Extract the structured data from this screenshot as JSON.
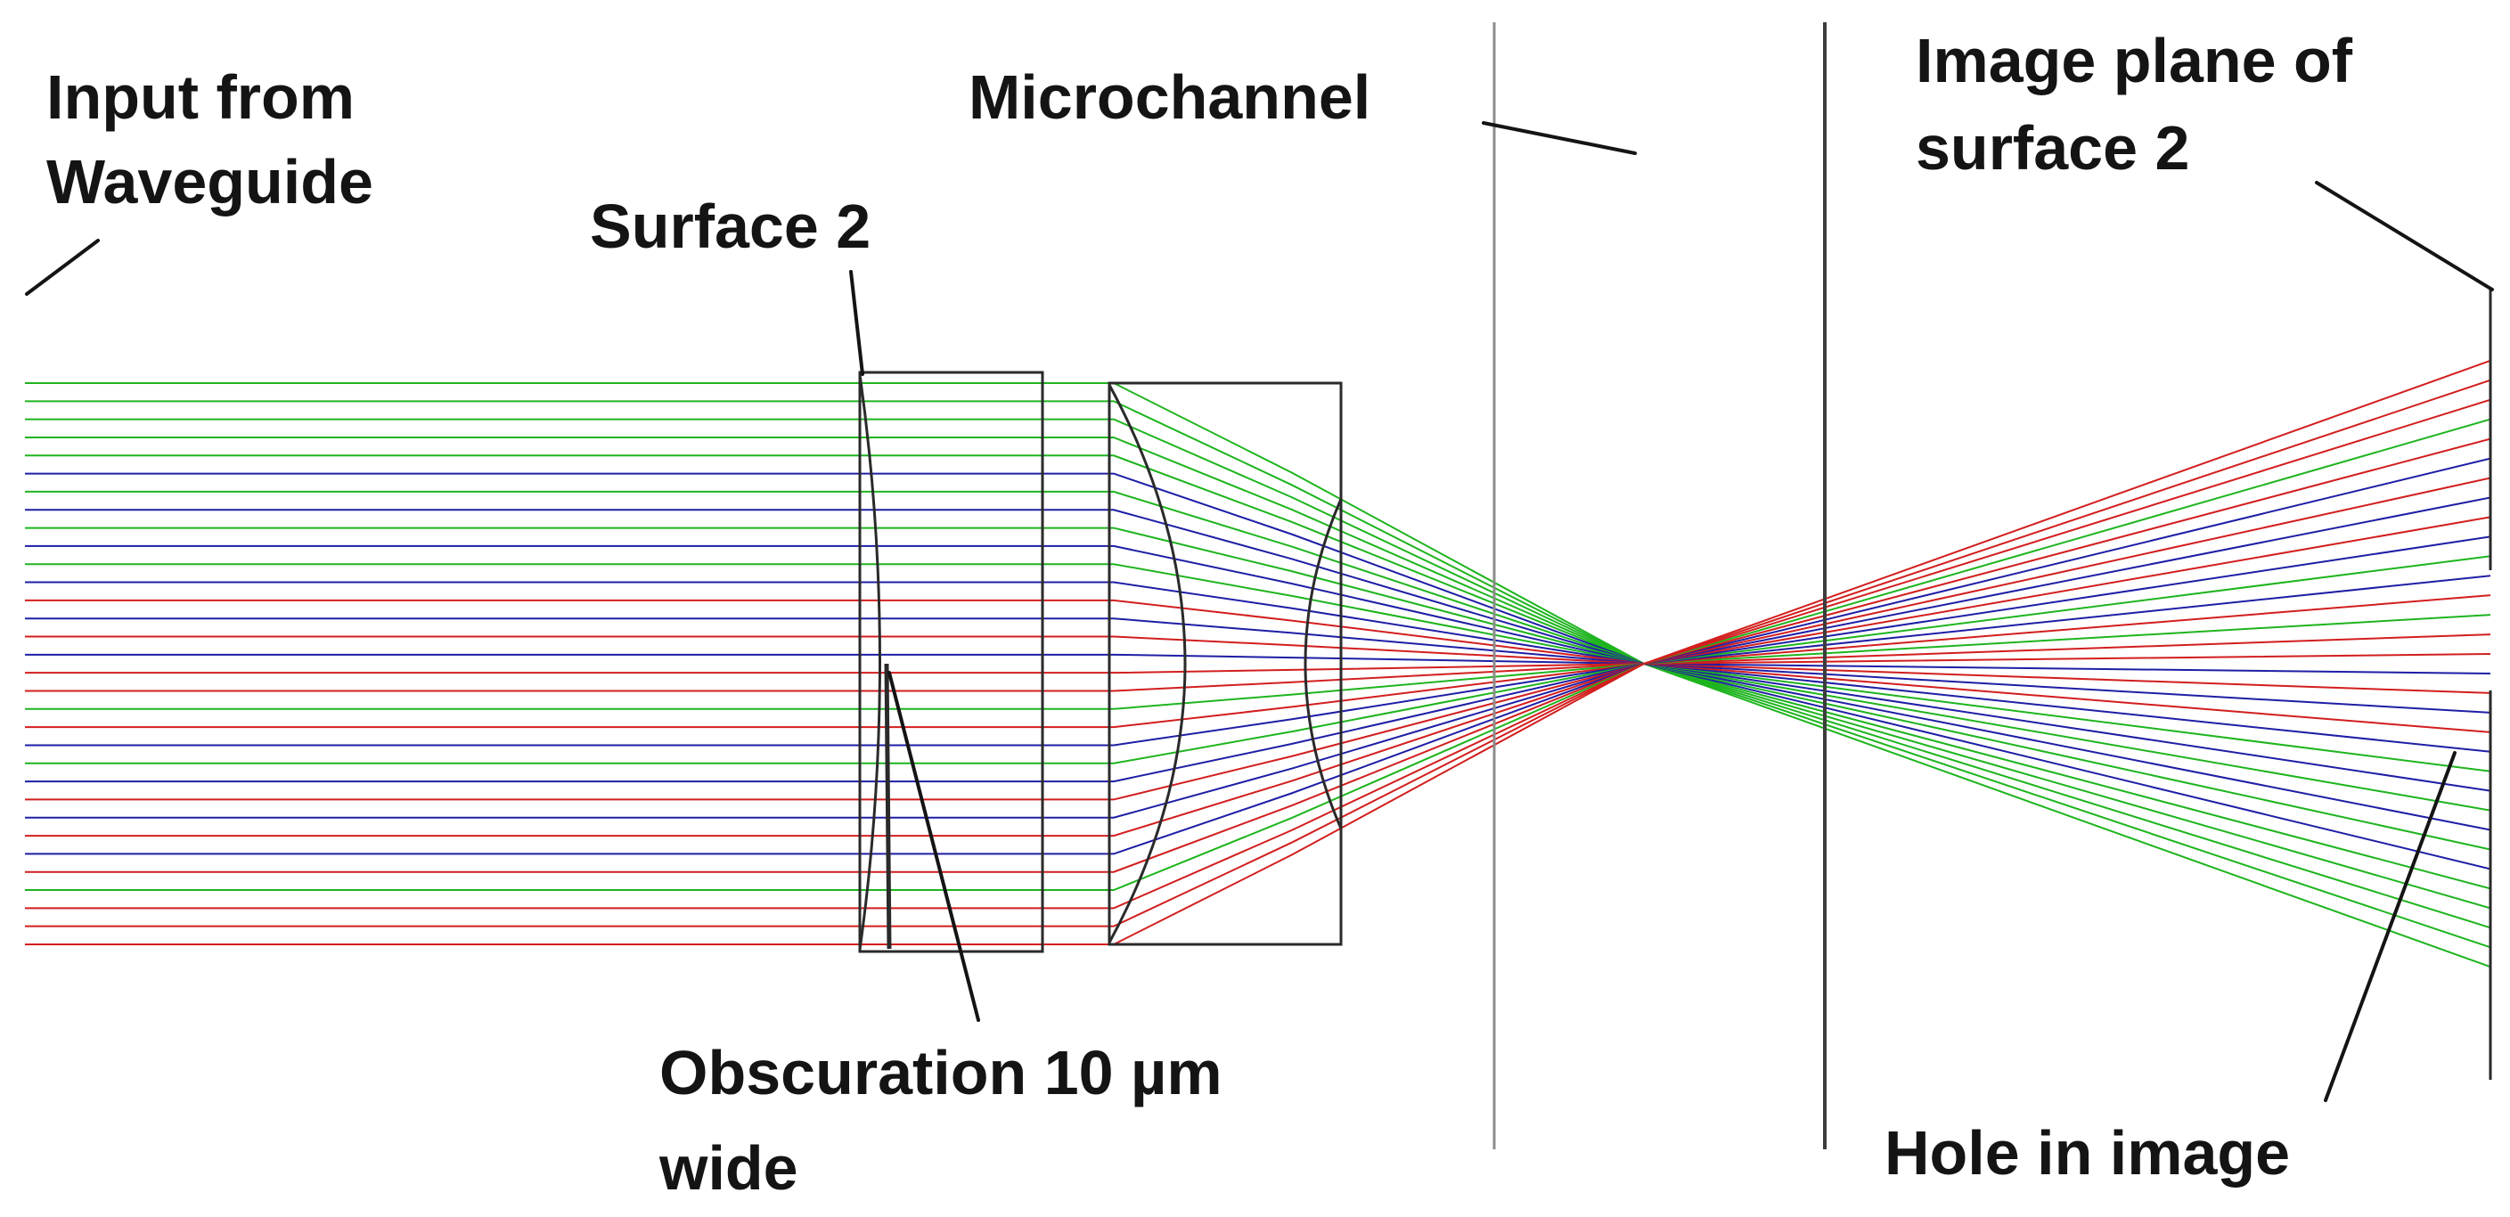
{
  "labels": {
    "input_line1": "Input from",
    "input_line2": "Waveguide",
    "microchannel": "Microchannel",
    "image_plane_line1": "Image plane of",
    "image_plane_line2": "surface 2",
    "surface2": "Surface 2",
    "obscuration_line1": "Obscuration 10 µm",
    "obscuration_line2": "wide",
    "hole": "Hole in image"
  },
  "colors": {
    "ray_red": "#d21e1e",
    "ray_green": "#1eb41e",
    "ray_blue": "#1e1ea5",
    "outline": "#2a2a2a",
    "divider": "#8c8c8c"
  },
  "rays": [
    {
      "color": "green"
    },
    {
      "color": "green"
    },
    {
      "color": "green"
    },
    {
      "color": "green"
    },
    {
      "color": "green"
    },
    {
      "color": "blue"
    },
    {
      "color": "green"
    },
    {
      "color": "blue"
    },
    {
      "color": "green"
    },
    {
      "color": "blue"
    },
    {
      "color": "green"
    },
    {
      "color": "blue"
    },
    {
      "color": "red"
    },
    {
      "color": "blue"
    },
    {
      "color": "red"
    },
    {
      "color": "blue"
    },
    {
      "color": "red"
    },
    {
      "color": "red"
    },
    {
      "color": "green"
    },
    {
      "color": "red"
    },
    {
      "color": "blue"
    },
    {
      "color": "green"
    },
    {
      "color": "blue"
    },
    {
      "color": "red"
    },
    {
      "color": "blue"
    },
    {
      "color": "red"
    },
    {
      "color": "blue"
    },
    {
      "color": "red"
    },
    {
      "color": "green"
    },
    {
      "color": "red"
    },
    {
      "color": "red"
    },
    {
      "color": "red"
    }
  ]
}
